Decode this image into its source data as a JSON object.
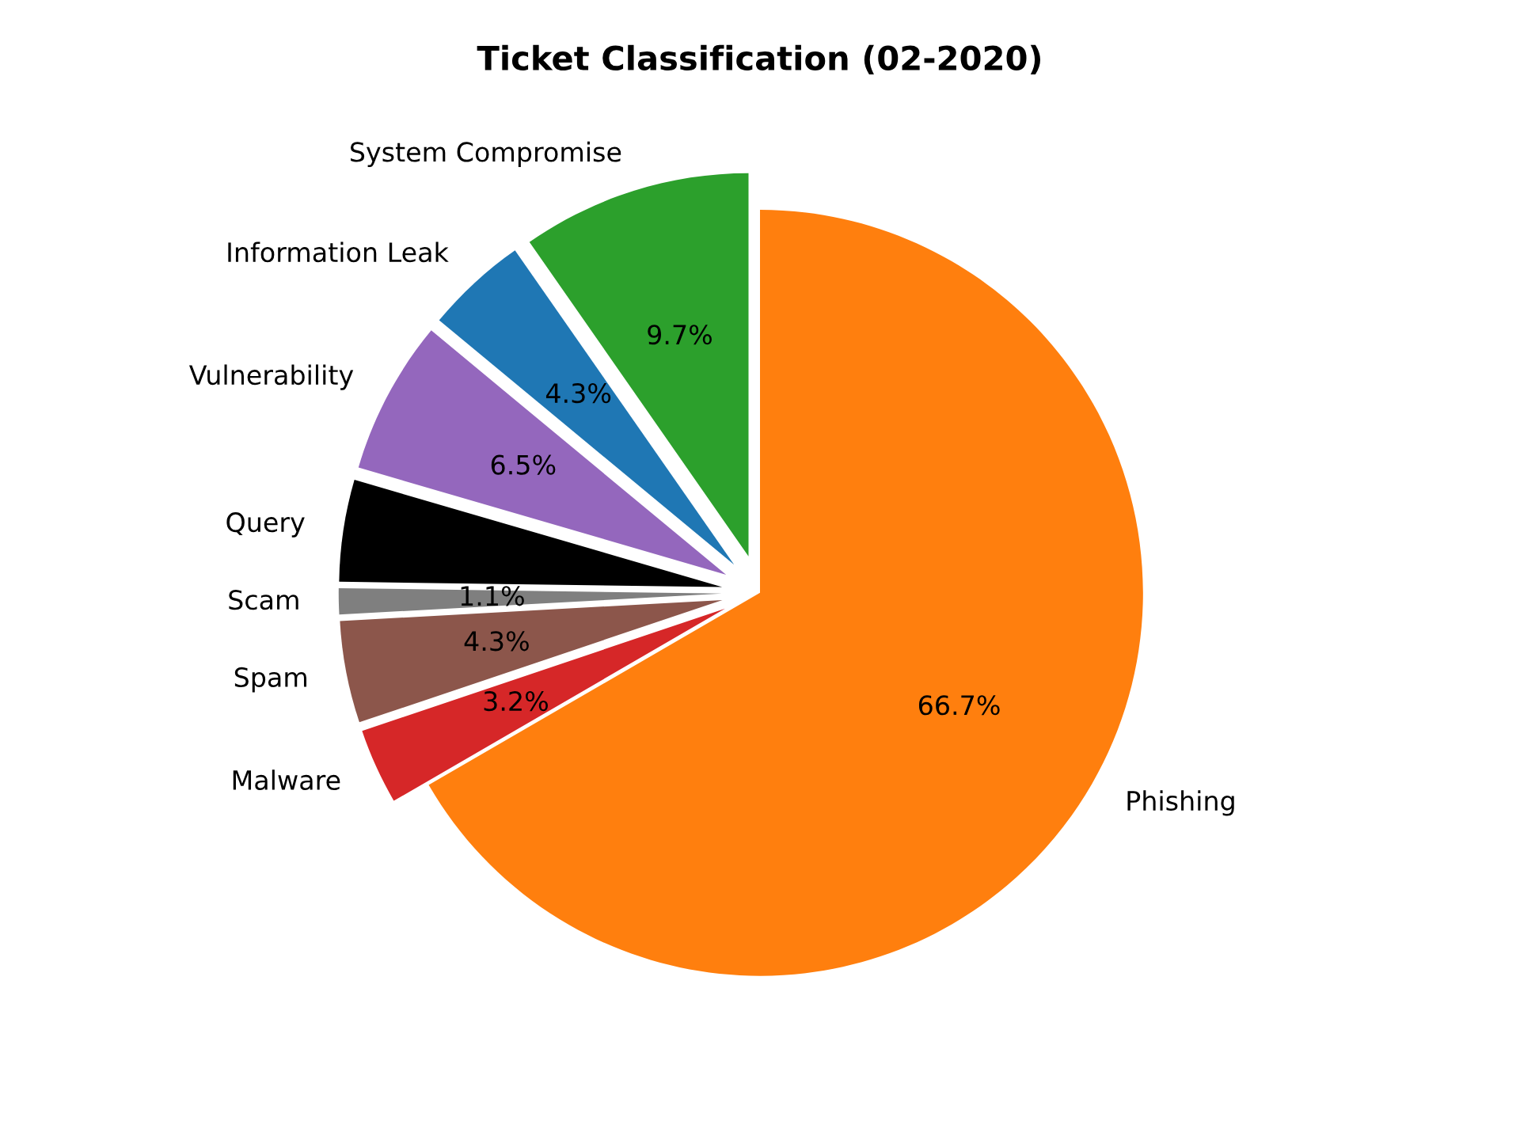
{
  "chart_data": {
    "type": "pie",
    "title": "Ticket Classification (02-2020)",
    "categories": [
      "Phishing",
      "Malware",
      "Spam",
      "Scam",
      "Query",
      "Vulnerability",
      "Information Leak",
      "System Compromise"
    ],
    "values": [
      66.7,
      3.2,
      4.3,
      1.1,
      4.3,
      6.5,
      4.3,
      9.7
    ],
    "colors": [
      "#ff7f0e",
      "#d62728",
      "#8c564b",
      "#7f7f7f",
      "#000000",
      "#9467bd",
      "#1f77b4",
      "#2ca02c"
    ],
    "value_labels": [
      "66.7%",
      "3.2%",
      "4.3%",
      "1.1%",
      null,
      "6.5%",
      "4.3%",
      "9.7%"
    ]
  }
}
